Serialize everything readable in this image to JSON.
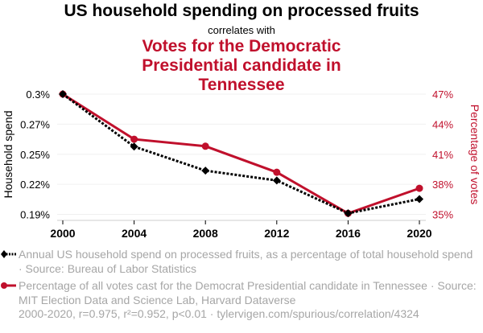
{
  "header": {
    "title": "US household spending on processed fruits",
    "connector": "correlates with",
    "subtitle": "Votes for the Democratic Presidential candidate in Tennessee"
  },
  "colors": {
    "series1": "#000000",
    "series2": "#c0102c",
    "legend_text": "#a6a6a6",
    "grid": "#f0f0f0"
  },
  "chart_data": {
    "type": "line",
    "title": "US household spending on processed fruits correlates with Votes for the Democratic Presidential candidate in Tennessee",
    "x": [
      2000,
      2004,
      2008,
      2012,
      2016,
      2020
    ],
    "xlabel": "",
    "x_ticks": [
      "2000",
      "2004",
      "2008",
      "2012",
      "2016",
      "2020"
    ],
    "y_left": {
      "label": "Household spend",
      "range": [
        0.19,
        0.3
      ],
      "ticks": [
        0.3,
        0.2725,
        0.245,
        0.2175,
        0.19
      ],
      "tick_labels": [
        "0.3%",
        "0.27%",
        "0.25%",
        "0.22%",
        "0.19%"
      ]
    },
    "y_right": {
      "label": "Percentage of votes",
      "range": [
        35,
        47
      ],
      "ticks": [
        47,
        44,
        41,
        38,
        35
      ],
      "tick_labels": [
        "47%",
        "44%",
        "41%",
        "38%",
        "35%"
      ]
    },
    "grid": true,
    "series": [
      {
        "name": "Annual US household spend on processed fruits, as a percentage of total household spend · Source: Bureau of Labor Statistics",
        "axis": "left",
        "style": "dotted-black-diamond",
        "values": [
          0.3,
          0.252,
          0.23,
          0.221,
          0.191,
          0.204
        ]
      },
      {
        "name": "Percentage of all votes cast for the Democrat Presidential candidate in Tennessee · Source: MIT Election Data and Science Lab, Harvard Dataverse",
        "axis": "right",
        "style": "solid-red-circle",
        "values": [
          47.0,
          42.5,
          41.8,
          39.2,
          35.1,
          37.6
        ]
      }
    ],
    "legend_position": "bottom"
  },
  "legend": [
    {
      "text": "Annual US household spend on processed fruits, as a percentage of total household spend · Source: Bureau of Labor Statistics",
      "icon": "diamond-dotted-line-icon"
    },
    {
      "text": "Percentage of all votes cast for the Democrat Presidential candidate in Tennessee · Source: MIT Election Data and Science Lab, Harvard Dataverse",
      "icon": "circle-solid-line-icon"
    }
  ],
  "footer": "2000-2020, r=0.975, r²=0.952, p<0.01 · tylervigen.com/spurious/correlation/4324"
}
